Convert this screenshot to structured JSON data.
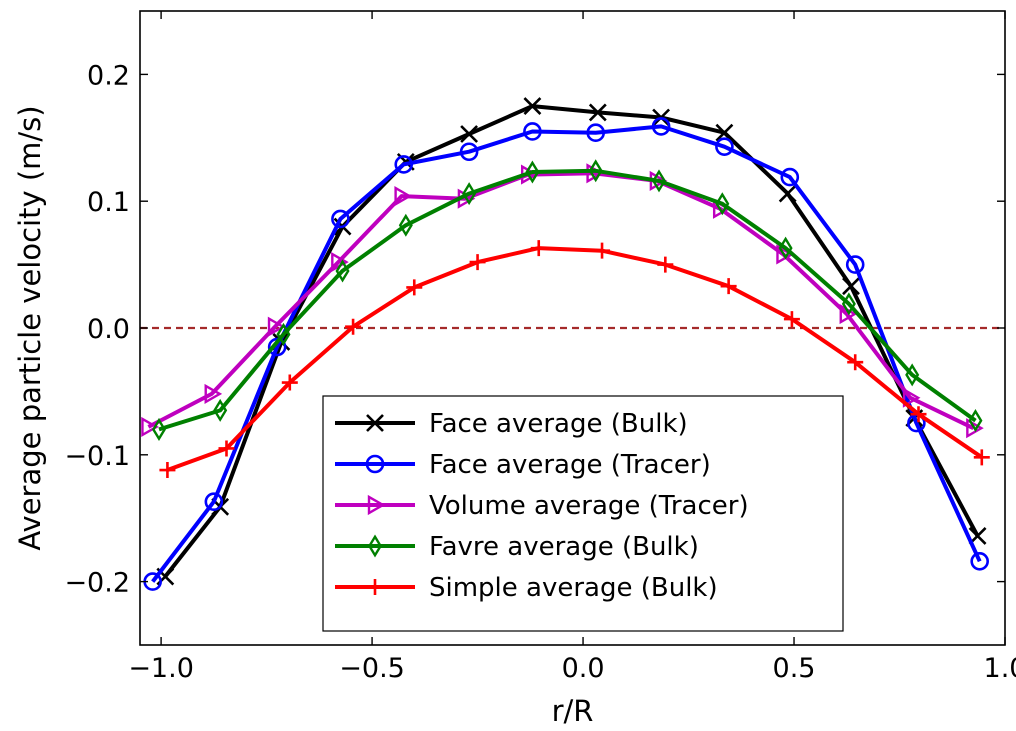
{
  "chart_data": {
    "type": "line",
    "title": "",
    "xlabel": "r/R",
    "ylabel": "Average particle velocity (m/s)",
    "xlim": [
      -1.05,
      1.0
    ],
    "ylim": [
      -0.25,
      0.25
    ],
    "xticks": [
      -1.0,
      -0.5,
      0.0,
      0.5,
      1.0
    ],
    "xtick_labels": [
      "−1.0",
      "−0.5",
      "0.0",
      "0.5",
      "1.0"
    ],
    "yticks": [
      -0.2,
      -0.1,
      0.0,
      0.1,
      0.2
    ],
    "ytick_labels": [
      "−0.2",
      "−0.1",
      "0.0",
      "0.1",
      "0.2"
    ],
    "grid": false,
    "legend_position": "bottom-center",
    "reference_line": {
      "y": 0.0,
      "color": "#a52a2a",
      "style": "dashed"
    },
    "series": [
      {
        "name": "Face average (Bulk)",
        "color": "#000000",
        "marker": "x",
        "points": [
          [
            -0.99,
            -0.196
          ],
          [
            -0.86,
            -0.141
          ],
          [
            -0.715,
            -0.011
          ],
          [
            -0.57,
            0.08
          ],
          [
            -0.42,
            0.131
          ],
          [
            -0.27,
            0.153
          ],
          [
            -0.12,
            0.175
          ],
          [
            0.035,
            0.17
          ],
          [
            0.185,
            0.166
          ],
          [
            0.335,
            0.154
          ],
          [
            0.485,
            0.106
          ],
          [
            0.635,
            0.033
          ],
          [
            0.785,
            -0.071
          ],
          [
            0.935,
            -0.164
          ]
        ]
      },
      {
        "name": "Face average (Tracer)",
        "color": "#0000ff",
        "marker": "circle",
        "points": [
          [
            -1.02,
            -0.2
          ],
          [
            -0.875,
            -0.137
          ],
          [
            -0.725,
            -0.015
          ],
          [
            -0.575,
            0.086
          ],
          [
            -0.425,
            0.129
          ],
          [
            -0.27,
            0.139
          ],
          [
            -0.12,
            0.155
          ],
          [
            0.03,
            0.154
          ],
          [
            0.185,
            0.159
          ],
          [
            0.335,
            0.143
          ],
          [
            0.49,
            0.119
          ],
          [
            0.645,
            0.05
          ],
          [
            0.79,
            -0.075
          ],
          [
            0.94,
            -0.184
          ]
        ]
      },
      {
        "name": "Volume average (Tracer)",
        "color": "#bf00bf",
        "marker": "triangle-right",
        "points": [
          [
            -1.03,
            -0.078
          ],
          [
            -0.88,
            -0.052
          ],
          [
            -0.73,
            0.001
          ],
          [
            -0.58,
            0.052
          ],
          [
            -0.43,
            0.104
          ],
          [
            -0.28,
            0.102
          ],
          [
            -0.13,
            0.121
          ],
          [
            0.025,
            0.122
          ],
          [
            0.175,
            0.116
          ],
          [
            0.325,
            0.094
          ],
          [
            0.475,
            0.058
          ],
          [
            0.625,
            0.011
          ],
          [
            0.775,
            -0.055
          ],
          [
            0.925,
            -0.079
          ]
        ]
      },
      {
        "name": "Favre average (Bulk)",
        "color": "#008000",
        "marker": "diamond",
        "points": [
          [
            -1.005,
            -0.08
          ],
          [
            -0.86,
            -0.065
          ],
          [
            -0.71,
            -0.005
          ],
          [
            -0.57,
            0.045
          ],
          [
            -0.42,
            0.081
          ],
          [
            -0.27,
            0.106
          ],
          [
            -0.12,
            0.123
          ],
          [
            0.03,
            0.124
          ],
          [
            0.18,
            0.116
          ],
          [
            0.33,
            0.098
          ],
          [
            0.48,
            0.063
          ],
          [
            0.63,
            0.019
          ],
          [
            0.78,
            -0.037
          ],
          [
            0.93,
            -0.073
          ]
        ]
      },
      {
        "name": "Simple average (Bulk)",
        "color": "#ff0000",
        "marker": "plus",
        "points": [
          [
            -0.985,
            -0.112
          ],
          [
            -0.845,
            -0.095
          ],
          [
            -0.695,
            -0.043
          ],
          [
            -0.545,
            0.001
          ],
          [
            -0.4,
            0.032
          ],
          [
            -0.25,
            0.052
          ],
          [
            -0.105,
            0.063
          ],
          [
            0.045,
            0.061
          ],
          [
            0.195,
            0.05
          ],
          [
            0.345,
            0.033
          ],
          [
            0.495,
            0.007
          ],
          [
            0.645,
            -0.027
          ],
          [
            0.795,
            -0.068
          ],
          [
            0.945,
            -0.102
          ]
        ]
      }
    ]
  }
}
